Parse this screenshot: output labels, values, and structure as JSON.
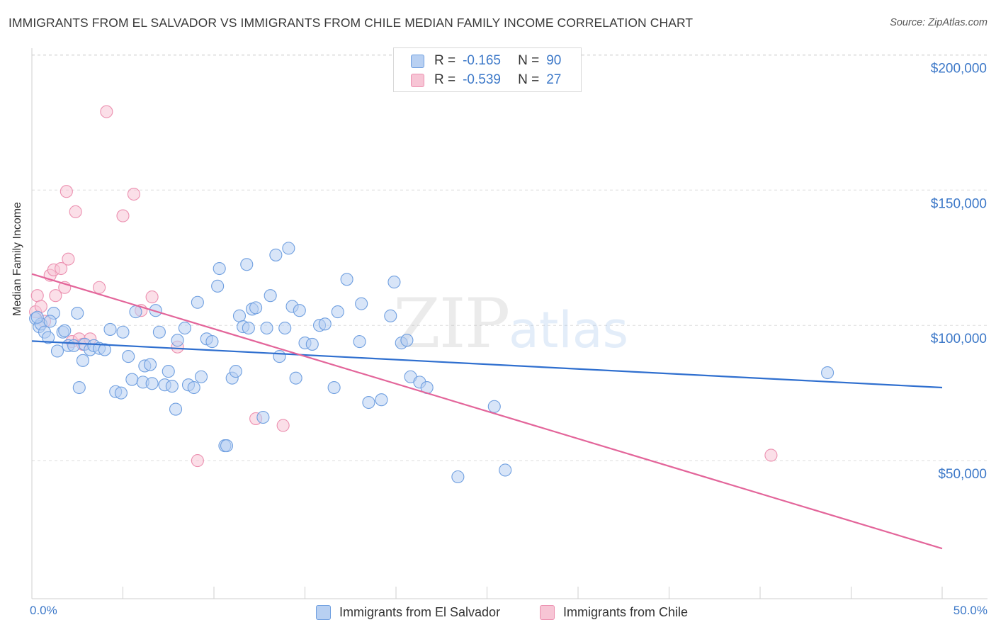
{
  "title": "IMMIGRANTS FROM EL SALVADOR VS IMMIGRANTS FROM CHILE MEDIAN FAMILY INCOME CORRELATION CHART",
  "source": "Source: ZipAtlas.com",
  "watermark": {
    "zip": "ZIP",
    "atlas": "atlas"
  },
  "legend": {
    "el_salvador": {
      "r_label": "R =",
      "r_value": "-0.165",
      "n_label": "N =",
      "n_value": "90"
    },
    "chile": {
      "r_label": "R =",
      "r_value": "-0.539",
      "n_label": "N =",
      "n_value": "27"
    }
  },
  "bottom_legend": {
    "el_salvador": "Immigrants from El Salvador",
    "chile": "Immigrants from Chile"
  },
  "colors": {
    "blue_fill": "#b8d0f2",
    "blue_stroke": "#6f9fe0",
    "blue_line": "#2f6fcf",
    "pink_fill": "#f7c5d5",
    "pink_stroke": "#ec90b0",
    "pink_line": "#e3659a",
    "axis_label": "#3c78c8",
    "grid": "#dddddd"
  },
  "chart_data": {
    "type": "scatter",
    "title": "IMMIGRANTS FROM EL SALVADOR VS IMMIGRANTS FROM CHILE MEDIAN FAMILY INCOME CORRELATION CHART",
    "xlabel": "",
    "ylabel": "Median Family Income",
    "xlim": [
      0,
      50
    ],
    "ylim": [
      0,
      210000
    ],
    "x_tick_labels": [
      "0.0%",
      "50.0%"
    ],
    "y_ticks": [
      50000,
      100000,
      150000,
      200000
    ],
    "y_tick_labels": [
      "$50,000",
      "$100,000",
      "$150,000",
      "$200,000"
    ],
    "grid": true,
    "series": [
      {
        "name": "Immigrants from El Salvador",
        "color": "#6f9fe0",
        "trend": {
          "x": [
            0,
            50
          ],
          "y": [
            94200,
            77000
          ]
        },
        "points": [
          [
            0.2,
            102500
          ],
          [
            0.4,
            99500
          ],
          [
            0.5,
            100500
          ],
          [
            0.7,
            97500
          ],
          [
            0.9,
            95500
          ],
          [
            1.2,
            104500
          ],
          [
            1.4,
            90500
          ],
          [
            1.7,
            97500
          ],
          [
            1.8,
            98000
          ],
          [
            2.0,
            92500
          ],
          [
            2.3,
            92500
          ],
          [
            2.5,
            104500
          ],
          [
            2.6,
            77000
          ],
          [
            2.8,
            87000
          ],
          [
            2.9,
            93000
          ],
          [
            3.2,
            91000
          ],
          [
            3.4,
            92500
          ],
          [
            3.7,
            91500
          ],
          [
            4.0,
            91000
          ],
          [
            4.3,
            98500
          ],
          [
            4.6,
            75500
          ],
          [
            4.9,
            75000
          ],
          [
            5.0,
            97500
          ],
          [
            5.3,
            88500
          ],
          [
            5.5,
            80000
          ],
          [
            5.7,
            105000
          ],
          [
            6.1,
            79000
          ],
          [
            6.2,
            85000
          ],
          [
            6.5,
            85500
          ],
          [
            6.6,
            78500
          ],
          [
            6.8,
            105500
          ],
          [
            7.0,
            97500
          ],
          [
            7.3,
            78000
          ],
          [
            7.5,
            83000
          ],
          [
            7.7,
            77500
          ],
          [
            7.9,
            69000
          ],
          [
            8.0,
            94500
          ],
          [
            8.4,
            99000
          ],
          [
            8.6,
            78000
          ],
          [
            8.9,
            77000
          ],
          [
            9.1,
            108500
          ],
          [
            9.3,
            81000
          ],
          [
            9.6,
            95000
          ],
          [
            9.9,
            94000
          ],
          [
            10.2,
            114500
          ],
          [
            10.3,
            121000
          ],
          [
            10.6,
            55500
          ],
          [
            10.7,
            55500
          ],
          [
            11.0,
            80500
          ],
          [
            11.2,
            83000
          ],
          [
            11.4,
            103500
          ],
          [
            11.6,
            99500
          ],
          [
            11.8,
            122500
          ],
          [
            11.9,
            99000
          ],
          [
            12.1,
            106000
          ],
          [
            12.3,
            106500
          ],
          [
            12.7,
            66000
          ],
          [
            12.9,
            99000
          ],
          [
            13.1,
            111000
          ],
          [
            13.4,
            126000
          ],
          [
            13.6,
            88500
          ],
          [
            13.9,
            99000
          ],
          [
            14.1,
            128500
          ],
          [
            14.3,
            107000
          ],
          [
            14.5,
            80500
          ],
          [
            14.7,
            105500
          ],
          [
            15.0,
            93500
          ],
          [
            15.4,
            93000
          ],
          [
            15.8,
            100000
          ],
          [
            16.1,
            100500
          ],
          [
            16.6,
            77000
          ],
          [
            16.8,
            105000
          ],
          [
            17.3,
            117000
          ],
          [
            18.0,
            94000
          ],
          [
            18.1,
            108000
          ],
          [
            18.5,
            71500
          ],
          [
            19.2,
            72500
          ],
          [
            19.7,
            103500
          ],
          [
            19.9,
            116000
          ],
          [
            20.3,
            93500
          ],
          [
            20.6,
            94500
          ],
          [
            20.8,
            81000
          ],
          [
            21.3,
            79000
          ],
          [
            21.7,
            77000
          ],
          [
            23.4,
            44000
          ],
          [
            25.4,
            70000
          ],
          [
            26.0,
            46500
          ],
          [
            43.7,
            82500
          ],
          [
            0.3,
            103000
          ],
          [
            1.0,
            101500
          ]
        ]
      },
      {
        "name": "Immigrants from Chile",
        "color": "#ec90b0",
        "trend": {
          "x": [
            0,
            50
          ],
          "y": [
            119000,
            17500
          ]
        },
        "points": [
          [
            0.2,
            105000
          ],
          [
            0.3,
            111000
          ],
          [
            0.5,
            107000
          ],
          [
            0.7,
            101500
          ],
          [
            1.0,
            118500
          ],
          [
            1.2,
            120500
          ],
          [
            1.3,
            111000
          ],
          [
            1.6,
            121000
          ],
          [
            1.8,
            114000
          ],
          [
            1.9,
            149500
          ],
          [
            2.0,
            124500
          ],
          [
            2.2,
            94000
          ],
          [
            2.4,
            142000
          ],
          [
            2.6,
            95000
          ],
          [
            2.8,
            93000
          ],
          [
            3.2,
            95000
          ],
          [
            3.7,
            114000
          ],
          [
            4.1,
            179000
          ],
          [
            5.0,
            140500
          ],
          [
            5.6,
            148500
          ],
          [
            6.0,
            105500
          ],
          [
            6.6,
            110500
          ],
          [
            8.0,
            92000
          ],
          [
            9.1,
            50000
          ],
          [
            12.3,
            65500
          ],
          [
            13.8,
            63000
          ],
          [
            40.6,
            52000
          ]
        ]
      }
    ]
  }
}
